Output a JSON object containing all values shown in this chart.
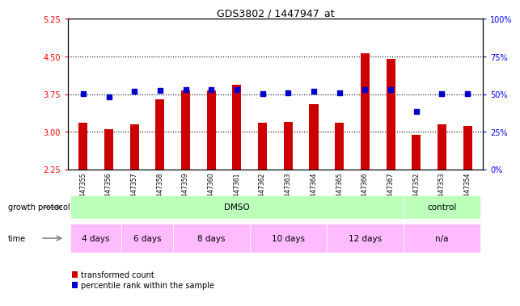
{
  "title": "GDS3802 / 1447947_at",
  "samples": [
    "GSM447355",
    "GSM447356",
    "GSM447357",
    "GSM447358",
    "GSM447359",
    "GSM447360",
    "GSM447361",
    "GSM447362",
    "GSM447363",
    "GSM447364",
    "GSM447365",
    "GSM447366",
    "GSM447367",
    "GSM447352",
    "GSM447353",
    "GSM447354"
  ],
  "bar_values": [
    3.18,
    3.05,
    3.15,
    3.65,
    3.82,
    3.83,
    3.93,
    3.18,
    3.2,
    3.55,
    3.18,
    4.57,
    4.45,
    2.93,
    3.15,
    3.12
  ],
  "dot_values": [
    3.76,
    3.7,
    3.8,
    3.82,
    3.84,
    3.84,
    3.84,
    3.76,
    3.77,
    3.8,
    3.77,
    3.84,
    3.84,
    3.4,
    3.76,
    3.76
  ],
  "ylim_left": [
    2.25,
    5.25
  ],
  "ylim_right": [
    0,
    100
  ],
  "yticks_left": [
    2.25,
    3.0,
    3.75,
    4.5,
    5.25
  ],
  "yticks_right": [
    0,
    25,
    50,
    75,
    100
  ],
  "bar_color": "#cc0000",
  "dot_color": "#0000cc",
  "bar_bottom": 2.25,
  "hlines": [
    3.0,
    3.75,
    4.5
  ],
  "bg_color": "#ffffff",
  "gp_color": "#bbffbb",
  "time_color": "#ffbbff",
  "legend_items": [
    {
      "label": "transformed count",
      "color": "#cc0000"
    },
    {
      "label": "percentile rank within the sample",
      "color": "#0000cc"
    }
  ]
}
